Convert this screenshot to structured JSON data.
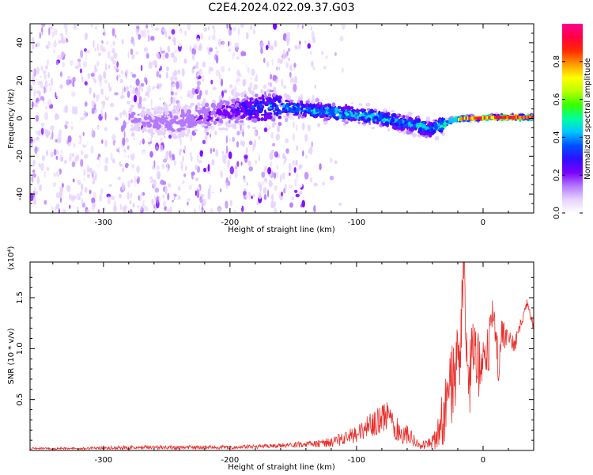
{
  "figure_title": "C2E4.2024.022.09.37.G03",
  "colors": {
    "snr_line": "#e8302c",
    "axis": "#000000",
    "colormap": [
      "#ffffff",
      "#e6d2ff",
      "#b478ff",
      "#7a00ff",
      "#2e10ff",
      "#0050ff",
      "#00c8ff",
      "#00ff9a",
      "#38ff00",
      "#b8ff00",
      "#ffff00",
      "#ff9a00",
      "#ff2a00",
      "#ff0044",
      "#ff0090"
    ]
  },
  "chart_data": [
    {
      "type": "heatmap",
      "title": "",
      "xlabel": "Height of straight line (km)",
      "ylabel": "Frequency (Hz)",
      "xlim": [
        -358,
        40
      ],
      "ylim": [
        -50,
        50
      ],
      "x_ticks": [
        -300,
        -200,
        -100,
        0
      ],
      "y_ticks": [
        -40,
        -20,
        0,
        20,
        40
      ],
      "colorbar": {
        "label": "Normalized spectral amplitude",
        "range": [
          0,
          1
        ],
        "ticks": [
          "0.0",
          "0.2",
          "0.4",
          "0.6",
          "0.8"
        ]
      },
      "ridge": {
        "x": [
          -270,
          -245,
          -220,
          -190,
          -160,
          -130,
          -100,
          -80,
          -60,
          -50,
          -42,
          -35,
          -25,
          -15,
          -5,
          5,
          15,
          30,
          40
        ],
        "frequency_hz": [
          -1,
          -2,
          1,
          5,
          6,
          4,
          2,
          0,
          -3,
          -4,
          -6,
          -4,
          -1,
          0,
          0,
          0.5,
          0.5,
          0.5,
          0.5
        ],
        "peak_amplitude": [
          0.15,
          0.18,
          0.2,
          0.3,
          0.45,
          0.5,
          0.5,
          0.5,
          0.45,
          0.55,
          0.45,
          0.5,
          0.7,
          0.9,
          1.0,
          0.95,
          1.0,
          1.0,
          1.0
        ]
      }
    },
    {
      "type": "line",
      "title": "",
      "xlabel": "Height of straight line (km)",
      "ylabel": "SNR (10 * v/v)",
      "y_multiplier": "(x10⁴)",
      "xlim": [
        -358,
        40
      ],
      "ylim": [
        0,
        1.85
      ],
      "x_ticks": [
        -300,
        -200,
        -100,
        0
      ],
      "y_ticks": [
        "0.5",
        "1.0",
        "1.5"
      ],
      "series": [
        {
          "x": [
            -358,
            -320,
            -280,
            -240,
            -200,
            -170,
            -140,
            -120,
            -110,
            -100,
            -90,
            -80,
            -75,
            -70,
            -60,
            -50,
            -45,
            -40,
            -35,
            -30,
            -25,
            -20,
            -17,
            -15,
            -12,
            -8,
            -5,
            0,
            5,
            8,
            12,
            15,
            20,
            25,
            30,
            35,
            37,
            40
          ],
          "y": [
            0.02,
            0.02,
            0.03,
            0.03,
            0.03,
            0.04,
            0.06,
            0.08,
            0.12,
            0.15,
            0.25,
            0.3,
            0.35,
            0.22,
            0.15,
            0.05,
            0.05,
            0.08,
            0.2,
            0.4,
            0.6,
            0.9,
            1.2,
            1.85,
            0.5,
            1.0,
            0.8,
            0.9,
            1.0,
            1.5,
            0.8,
            1.15,
            1.1,
            1.05,
            1.25,
            1.45,
            1.35,
            1.2
          ],
          "noise_amplitude": [
            0.01,
            0.01,
            0.02,
            0.02,
            0.02,
            0.02,
            0.03,
            0.05,
            0.07,
            0.09,
            0.12,
            0.14,
            0.15,
            0.12,
            0.1,
            0.05,
            0.05,
            0.07,
            0.2,
            0.35,
            0.45,
            0.5,
            0.5,
            0.3,
            0.4,
            0.4,
            0.35,
            0.3,
            0.3,
            0.25,
            0.2,
            0.15,
            0.1,
            0.08,
            0.06,
            0.05,
            0.05,
            0.05
          ]
        }
      ]
    }
  ]
}
